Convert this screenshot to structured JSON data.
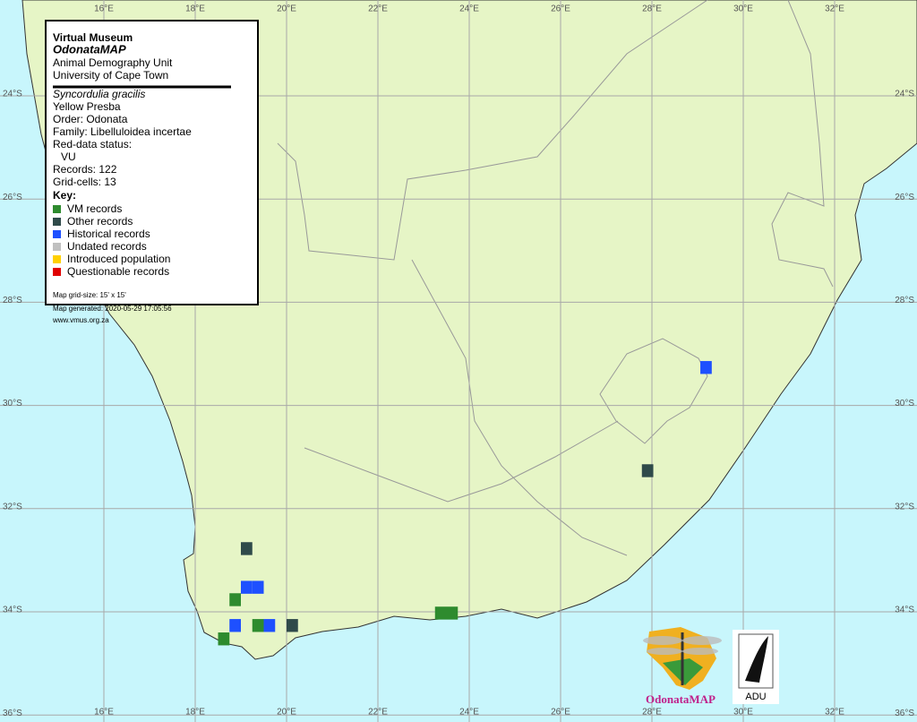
{
  "header": {
    "title": "Virtual Museum",
    "project": "OdonataMAP",
    "unit": "Animal Demography Unit",
    "university": "University of Cape Town"
  },
  "species": {
    "scientific_name": "Syncordulia gracilis",
    "common_name": "Yellow Presba",
    "order": "Order: Odonata",
    "family": "Family: Libelluloidea incertae",
    "red_data_label": "Red-data status:",
    "red_data_status": "VU",
    "records": "Records: 122",
    "grid_cells": "Grid-cells: 13"
  },
  "key": {
    "title": "Key:",
    "items": [
      {
        "label": "VM records",
        "color": "#2e8b2e"
      },
      {
        "label": "Other records",
        "color": "#2f4a4a"
      },
      {
        "label": "Historical records",
        "color": "#1e50ff"
      },
      {
        "label": "Undated records",
        "color": "#c0c0c0"
      },
      {
        "label": "Introduced population",
        "color": "#ffd000"
      },
      {
        "label": "Questionable records",
        "color": "#e00000"
      }
    ]
  },
  "notes": {
    "grid_size": "Map grid-size: 15' x 15'",
    "generated": "Map generated: 2020-05-29 17:05:56",
    "url": "www.vmus.org.za"
  },
  "map": {
    "lon_ticks": [
      {
        "value": 16,
        "label": "16°E"
      },
      {
        "value": 18,
        "label": "18°E"
      },
      {
        "value": 20,
        "label": "20°E"
      },
      {
        "value": 22,
        "label": "22°E"
      },
      {
        "value": 24,
        "label": "24°E"
      },
      {
        "value": 26,
        "label": "26°E"
      },
      {
        "value": 28,
        "label": "28°E"
      },
      {
        "value": 30,
        "label": "30°E"
      },
      {
        "value": 32,
        "label": "32°E"
      }
    ],
    "lat_ticks": [
      {
        "value": 24,
        "label": "24°S"
      },
      {
        "value": 26,
        "label": "26°S"
      },
      {
        "value": 28,
        "label": "28°S"
      },
      {
        "value": 30,
        "label": "30°S"
      },
      {
        "value": 32,
        "label": "32°S"
      },
      {
        "value": 34,
        "label": "34°S"
      },
      {
        "value": 36,
        "label": "36°S"
      }
    ],
    "records": [
      {
        "lon": 29.06,
        "lat": 29.14,
        "color": "#1e50ff"
      },
      {
        "lon": 27.78,
        "lat": 31.14,
        "color": "#2f4a4a"
      },
      {
        "lon": 19.0,
        "lat": 32.65,
        "color": "#2f4a4a"
      },
      {
        "lon": 19.0,
        "lat": 33.4,
        "color": "#1e50ff"
      },
      {
        "lon": 19.25,
        "lat": 33.4,
        "color": "#1e50ff"
      },
      {
        "lon": 18.75,
        "lat": 33.64,
        "color": "#2e8b2e"
      },
      {
        "lon": 23.25,
        "lat": 33.9,
        "color": "#2e8b2e"
      },
      {
        "lon": 23.5,
        "lat": 33.9,
        "color": "#2e8b2e"
      },
      {
        "lon": 18.75,
        "lat": 34.14,
        "color": "#1e50ff"
      },
      {
        "lon": 19.25,
        "lat": 34.14,
        "color": "#2e8b2e"
      },
      {
        "lon": 19.5,
        "lat": 34.14,
        "color": "#1e50ff"
      },
      {
        "lon": 20.0,
        "lat": 34.14,
        "color": "#2f4a4a"
      },
      {
        "lon": 18.5,
        "lat": 34.4,
        "color": "#2e8b2e"
      }
    ]
  },
  "logos": {
    "odonatamap": "OdonataMAP",
    "adu": "ADU"
  }
}
